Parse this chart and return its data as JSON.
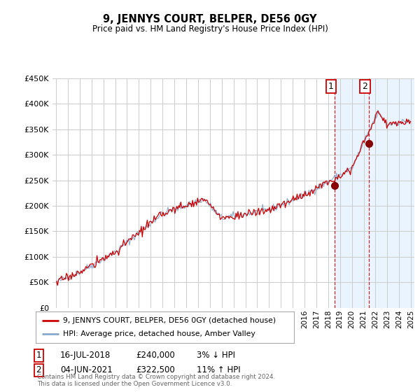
{
  "title": "9, JENNYS COURT, BELPER, DE56 0GY",
  "subtitle": "Price paid vs. HM Land Registry's House Price Index (HPI)",
  "legend_line1": "9, JENNYS COURT, BELPER, DE56 0GY (detached house)",
  "legend_line2": "HPI: Average price, detached house, Amber Valley",
  "annotation1_date": "16-JUL-2018",
  "annotation1_price": "£240,000",
  "annotation1_hpi": "3% ↓ HPI",
  "annotation2_date": "04-JUN-2021",
  "annotation2_price": "£322,500",
  "annotation2_hpi": "11% ↑ HPI",
  "footnote": "Contains HM Land Registry data © Crown copyright and database right 2024.\nThis data is licensed under the Open Government Licence v3.0.",
  "ylim": [
    0,
    450000
  ],
  "yticks": [
    0,
    50000,
    100000,
    150000,
    200000,
    250000,
    300000,
    350000,
    400000,
    450000
  ],
  "ytick_labels": [
    "£0",
    "£50K",
    "£100K",
    "£150K",
    "£200K",
    "£250K",
    "£300K",
    "£350K",
    "£400K",
    "£450K"
  ],
  "sale1_x": 2018.54,
  "sale1_y": 240000,
  "sale2_x": 2021.42,
  "sale2_y": 322500,
  "shade_color": "#ddeeff",
  "line_red": "#cc0000",
  "line_blue": "#88aacc",
  "marker_color": "#880000",
  "shade_alpha": 0.6,
  "background_color": "#ffffff",
  "grid_color": "#cccccc",
  "xlim_left": 1994.7,
  "xlim_right": 2025.3
}
